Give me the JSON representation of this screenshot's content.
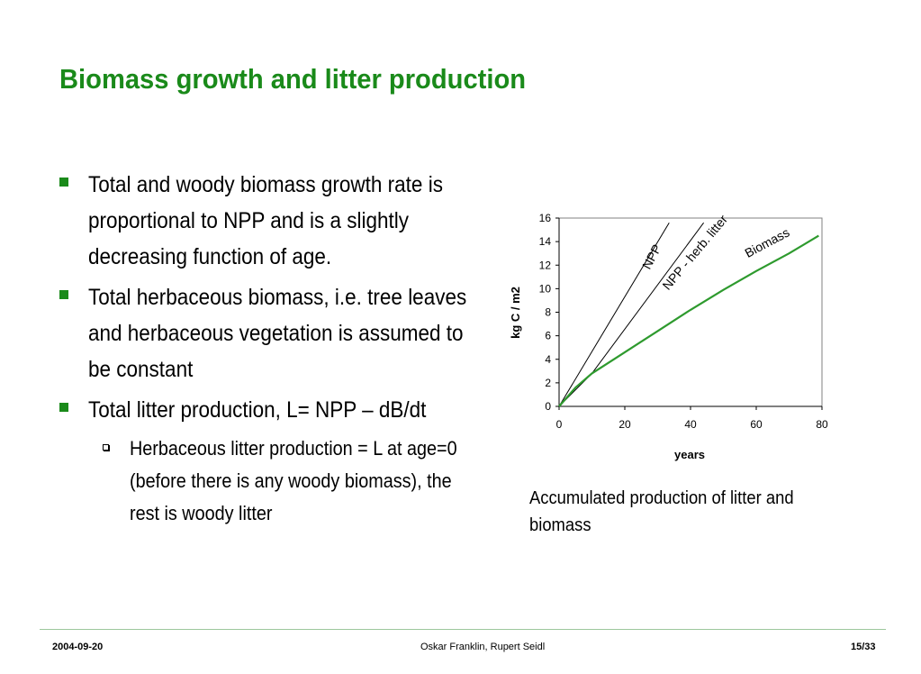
{
  "slide": {
    "title": "Biomass growth and litter production",
    "bullets": [
      "Total and woody biomass growth rate is proportional to NPP and is a slightly decreasing function of age.",
      "Total herbaceous biomass, i.e. tree leaves and herbaceous vegetation is assumed to be constant",
      "Total litter production, L= NPP – dB/dt"
    ],
    "sub_bullet": "Herbaceous litter production = L at age=0 (before there is any woody biomass), the rest is woody litter",
    "caption": "Accumulated production of litter and biomass",
    "bullet_color": "#1a8a1a",
    "title_color": "#1a8a1a"
  },
  "footer": {
    "date": "2004-09-20",
    "authors": "Oskar Franklin, Rupert Seidl",
    "page": "15/33"
  },
  "chart_data": {
    "type": "line",
    "xlabel": "years",
    "ylabel": "kg C / m2",
    "xlim": [
      0,
      80
    ],
    "ylim": [
      0,
      16
    ],
    "xticks": [
      0,
      20,
      40,
      60,
      80
    ],
    "yticks": [
      0,
      2,
      4,
      6,
      8,
      10,
      12,
      14,
      16
    ],
    "grid": false,
    "series": [
      {
        "name": "NPP",
        "color": "#000000",
        "x": [
          0,
          33.5
        ],
        "y": [
          0,
          15.6
        ]
      },
      {
        "name": "NPP - herb. litter",
        "color": "#000000",
        "x": [
          0,
          10,
          44
        ],
        "y": [
          0,
          2.8,
          15.6
        ]
      },
      {
        "name": "Biomass",
        "color": "#2e9a2e",
        "x": [
          0,
          5,
          10,
          20,
          30,
          40,
          50,
          60,
          70,
          79
        ],
        "y": [
          0,
          1.6,
          2.8,
          4.6,
          6.4,
          8.2,
          9.9,
          11.5,
          13.0,
          14.5
        ]
      }
    ]
  }
}
